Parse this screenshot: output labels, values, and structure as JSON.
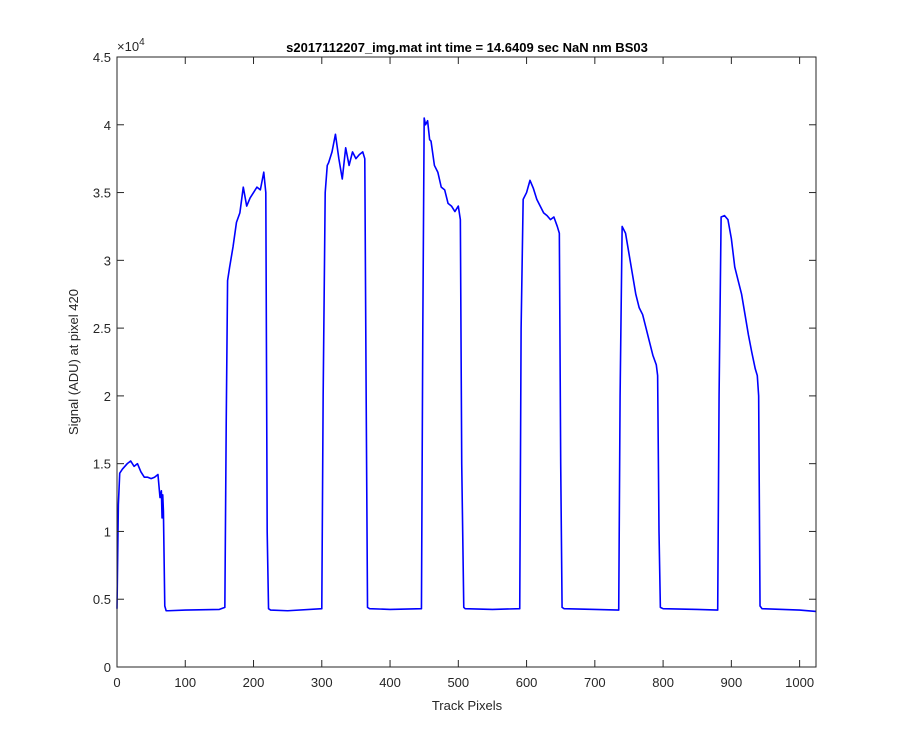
{
  "chart_data": {
    "type": "line",
    "title": "s2017112207_img.mat int time = 14.6409 sec  NaN nm BS03",
    "xlabel": "Track Pixels",
    "ylabel": "Signal (ADU) at pixel 420",
    "xlim": [
      0,
      1024
    ],
    "ylim": [
      0,
      45000
    ],
    "x_ticks": [
      0,
      100,
      200,
      300,
      400,
      500,
      600,
      700,
      800,
      900,
      1000
    ],
    "x_tick_labels": [
      "0",
      "100",
      "200",
      "300",
      "400",
      "500",
      "600",
      "700",
      "800",
      "900",
      "1000"
    ],
    "y_ticks": [
      0,
      5000,
      10000,
      15000,
      20000,
      25000,
      30000,
      35000,
      40000,
      45000
    ],
    "y_tick_labels": [
      "0",
      "0.5",
      "1",
      "1.5",
      "2",
      "2.5",
      "3",
      "3.5",
      "4",
      "4.5"
    ],
    "y_exponent_label": "×10",
    "y_exponent_power": "4",
    "grid": false,
    "series": [
      {
        "color": "#0000ff",
        "x": [
          0,
          2,
          4,
          8,
          15,
          20,
          25,
          30,
          35,
          40,
          45,
          50,
          55,
          60,
          63,
          65,
          66,
          67,
          68,
          69,
          70,
          72,
          75,
          100,
          150,
          158,
          160,
          162,
          165,
          170,
          175,
          180,
          185,
          190,
          195,
          200,
          205,
          210,
          215,
          218,
          220,
          222,
          225,
          250,
          300,
          302,
          305,
          308,
          310,
          315,
          320,
          325,
          330,
          335,
          340,
          345,
          350,
          355,
          360,
          363,
          365,
          367,
          370,
          400,
          446,
          448,
          450,
          452,
          455,
          458,
          460,
          465,
          470,
          475,
          480,
          485,
          490,
          495,
          500,
          503,
          505,
          508,
          510,
          550,
          590,
          592,
          595,
          600,
          605,
          610,
          615,
          620,
          625,
          630,
          635,
          640,
          645,
          648,
          650,
          652,
          655,
          700,
          735,
          737,
          740,
          745,
          750,
          755,
          760,
          765,
          770,
          775,
          780,
          785,
          790,
          792,
          794,
          796,
          800,
          850,
          880,
          882,
          885,
          890,
          895,
          900,
          905,
          910,
          915,
          920,
          925,
          930,
          935,
          938,
          940,
          942,
          945,
          1000,
          1024
        ],
        "y": [
          4300,
          12000,
          14300,
          14600,
          15000,
          15200,
          14800,
          15000,
          14400,
          14000,
          14000,
          13900,
          14000,
          14200,
          12500,
          13000,
          11000,
          12700,
          11500,
          8000,
          4500,
          4150,
          4150,
          4200,
          4250,
          4400,
          18000,
          28500,
          29500,
          31000,
          32800,
          33500,
          35400,
          34000,
          34600,
          35000,
          35400,
          35200,
          36500,
          35000,
          10000,
          4300,
          4200,
          4150,
          4300,
          20000,
          35000,
          37000,
          37200,
          38000,
          39300,
          37500,
          36000,
          38300,
          37000,
          38000,
          37500,
          37800,
          38000,
          37500,
          20000,
          4400,
          4300,
          4250,
          4300,
          25000,
          40500,
          40000,
          40300,
          38900,
          38800,
          37000,
          36500,
          35400,
          35200,
          34200,
          34000,
          33600,
          34000,
          33000,
          15000,
          4400,
          4300,
          4250,
          4300,
          25000,
          34500,
          35000,
          35900,
          35300,
          34500,
          34000,
          33500,
          33300,
          33000,
          33200,
          32500,
          32000,
          15000,
          4400,
          4300,
          4250,
          4200,
          20000,
          32500,
          32000,
          30500,
          29000,
          27500,
          26500,
          26000,
          25000,
          24000,
          23000,
          22300,
          21500,
          10000,
          4400,
          4300,
          4250,
          4200,
          20000,
          33200,
          33300,
          33000,
          31600,
          29500,
          28500,
          27500,
          26000,
          24500,
          23200,
          22000,
          21500,
          20000,
          4500,
          4300,
          4200,
          4100
        ]
      }
    ]
  }
}
